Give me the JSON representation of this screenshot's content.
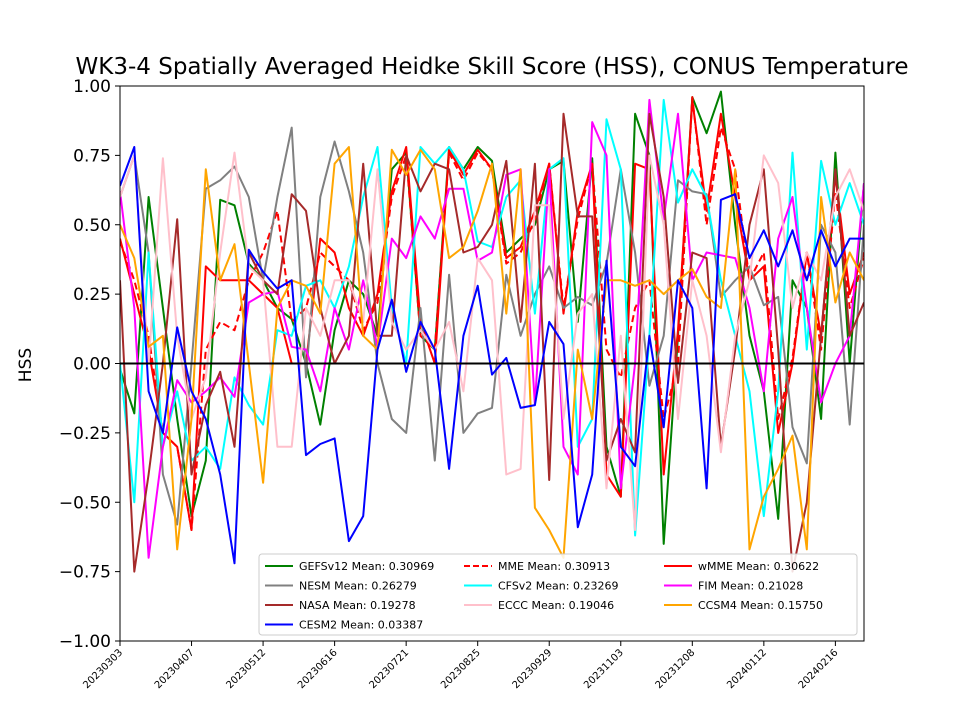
{
  "chart_data": {
    "type": "line",
    "title": "WK3-4 Spatially Averaged Heidke Skill Score (HSS), CONUS Temperature",
    "xlabel": "",
    "ylabel": "HSS",
    "ylim": [
      -1.0,
      1.0
    ],
    "y_ticks": [
      "1.00",
      "0.75",
      "0.50",
      "0.25",
      "0.00",
      "−0.25",
      "−0.50",
      "−0.75",
      "−1.00"
    ],
    "y_tick_values": [
      1.0,
      0.75,
      0.5,
      0.25,
      0.0,
      -0.25,
      -0.5,
      -0.75,
      -1.0
    ],
    "x_ticks": [
      "20230303",
      "20230407",
      "20230512",
      "20230616",
      "20230721",
      "20230825",
      "20230929",
      "20231103",
      "20231208",
      "20240112",
      "20240216"
    ],
    "zero_line": true,
    "grid": false,
    "legend_position": "lower-right",
    "x_count": 53,
    "series": [
      {
        "name": "GEFSv12 Mean: 0.30969",
        "color": "#008000",
        "dash": "solid",
        "values": [
          -0.02,
          -0.18,
          0.6,
          0.2,
          -0.2,
          -0.55,
          -0.35,
          0.59,
          0.57,
          0.36,
          0.3,
          0.2,
          0.16,
          0.0,
          -0.22,
          0.12,
          0.3,
          0.25,
          0.1,
          0.7,
          0.76,
          0.1,
          0.05,
          0.78,
          0.7,
          0.78,
          0.73,
          0.4,
          0.45,
          0.5,
          0.7,
          0.73,
          0.15,
          0.74,
          -0.3,
          -0.48,
          0.9,
          0.75,
          -0.65,
          0.1,
          0.96,
          0.83,
          0.98,
          0.5,
          0.1,
          -0.1,
          -0.56,
          0.3,
          0.2,
          -0.2,
          0.76,
          0.0,
          0.65
        ]
      },
      {
        "name": "MME Mean: 0.30913",
        "color": "#ff0000",
        "dash": "dashed",
        "values": [
          0.44,
          0.3,
          0.1,
          -0.25,
          -0.3,
          -0.6,
          0.05,
          0.15,
          0.12,
          0.3,
          0.4,
          0.55,
          0.15,
          0.2,
          0.4,
          0.35,
          0.3,
          0.12,
          0.22,
          0.6,
          0.75,
          0.1,
          0.05,
          0.76,
          0.66,
          0.76,
          0.7,
          0.36,
          0.4,
          0.52,
          0.72,
          0.2,
          0.52,
          0.72,
          0.05,
          -0.05,
          0.2,
          0.3,
          -0.2,
          0.0,
          0.96,
          0.5,
          0.85,
          0.7,
          0.3,
          0.4,
          -0.2,
          0.02,
          0.4,
          0.05,
          0.62,
          0.2,
          0.38
        ]
      },
      {
        "name": "wMME Mean: 0.30622",
        "color": "#ff0000",
        "dash": "solid",
        "values": [
          0.45,
          0.25,
          0.05,
          -0.25,
          -0.3,
          -0.6,
          0.35,
          0.3,
          0.3,
          0.3,
          0.25,
          0.2,
          0.0,
          0.0,
          0.45,
          0.4,
          0.2,
          0.1,
          0.25,
          0.62,
          0.78,
          0.15,
          0.0,
          0.77,
          0.68,
          0.77,
          0.7,
          0.38,
          0.42,
          0.55,
          0.72,
          0.18,
          0.55,
          0.72,
          -0.4,
          -0.48,
          0.72,
          0.7,
          -0.4,
          0.12,
          0.95,
          0.55,
          0.9,
          0.6,
          0.3,
          0.35,
          -0.25,
          0.0,
          0.4,
          0.1,
          0.68,
          0.25,
          0.4
        ]
      },
      {
        "name": "NESM Mean: 0.26279",
        "color": "#808080",
        "dash": "solid",
        "values": [
          0.6,
          0.75,
          0.4,
          -0.4,
          -0.58,
          0.0,
          0.63,
          0.66,
          0.71,
          0.6,
          0.3,
          0.6,
          0.85,
          -0.05,
          0.6,
          0.8,
          0.62,
          0.4,
          0.0,
          -0.2,
          -0.25,
          0.2,
          -0.35,
          0.32,
          -0.25,
          -0.18,
          -0.16,
          0.32,
          0.1,
          0.25,
          0.35,
          0.2,
          0.24,
          0.21,
          0.36,
          0.7,
          0.4,
          -0.08,
          0.1,
          0.66,
          0.62,
          0.61,
          0.24,
          0.3,
          0.35,
          0.21,
          0.24,
          -0.23,
          -0.36,
          0.5,
          0.4,
          -0.22,
          0.5
        ]
      },
      {
        "name": "CFSv2 Mean: 0.23269",
        "color": "#00ffff",
        "dash": "solid",
        "values": [
          0.0,
          -0.5,
          0.4,
          -0.3,
          -0.1,
          -0.35,
          -0.3,
          -0.38,
          -0.05,
          -0.15,
          -0.22,
          0.12,
          0.1,
          0.28,
          0.3,
          0.2,
          0.35,
          0.6,
          0.78,
          0.2,
          0.0,
          0.78,
          0.72,
          0.78,
          0.7,
          0.44,
          0.42,
          0.6,
          0.66,
          0.18,
          0.7,
          0.74,
          -0.3,
          -0.2,
          0.88,
          0.7,
          -0.62,
          0.1,
          0.95,
          0.58,
          0.7,
          0.6,
          0.3,
          0.1,
          -0.1,
          -0.55,
          -0.1,
          0.76,
          0.05,
          0.73,
          0.5,
          0.65,
          0.5
        ]
      },
      {
        "name": "FIM Mean: 0.21028",
        "color": "#ff00ff",
        "dash": "solid",
        "values": [
          0.62,
          0.2,
          -0.7,
          -0.3,
          -0.06,
          -0.14,
          -0.1,
          -0.05,
          -0.12,
          0.22,
          0.25,
          0.26,
          0.06,
          0.05,
          -0.1,
          0.2,
          0.05,
          0.3,
          0.06,
          0.45,
          0.38,
          0.53,
          0.45,
          0.63,
          0.63,
          0.37,
          0.4,
          0.68,
          0.7,
          -0.15,
          0.7,
          -0.3,
          -0.4,
          0.87,
          0.75,
          -0.45,
          0.0,
          0.95,
          0.52,
          0.9,
          0.3,
          0.4,
          0.39,
          0.38,
          0.2,
          -0.1,
          0.45,
          0.6,
          0.2,
          -0.14,
          0.0,
          0.1,
          0.65
        ]
      },
      {
        "name": "NASA Mean: 0.19278",
        "color": "#a52a2a",
        "dash": "solid",
        "values": [
          0.3,
          -0.75,
          -0.4,
          0.0,
          0.52,
          -0.4,
          -0.15,
          -0.03,
          -0.3,
          0.4,
          0.3,
          0.25,
          0.61,
          0.55,
          0.2,
          0.0,
          0.1,
          0.72,
          0.1,
          0.1,
          0.75,
          0.62,
          0.72,
          0.7,
          0.4,
          0.42,
          0.5,
          0.73,
          0.15,
          0.72,
          -0.42,
          0.9,
          0.53,
          0.53,
          -0.35,
          -0.2,
          -0.32,
          0.9,
          0.6,
          -0.07,
          0.4,
          0.38,
          -0.3,
          0.05,
          0.5,
          0.7,
          0.05,
          -0.75,
          -0.5,
          0.1,
          0.7,
          0.1,
          0.22
        ]
      },
      {
        "name": "ECCC Mean: 0.19046",
        "color": "#ffc0cb",
        "dash": "solid",
        "values": [
          0.6,
          0.75,
          0.0,
          0.74,
          0.1,
          -0.2,
          -0.05,
          0.4,
          0.76,
          0.35,
          0.3,
          -0.3,
          -0.3,
          0.2,
          0.1,
          0.3,
          0.3,
          0.15,
          0.7,
          0.15,
          0.05,
          0.12,
          0.05,
          0.15,
          -0.1,
          0.38,
          0.3,
          -0.4,
          -0.38,
          0.57,
          0.57,
          -0.2,
          0.18,
          0.25,
          -0.45,
          0.1,
          -0.6,
          0.75,
          0.5,
          -0.2,
          0.3,
          0.1,
          -0.32,
          0.1,
          0.3,
          0.75,
          0.65,
          0.2,
          0.4,
          0.3,
          0.6,
          0.7,
          0.55
        ]
      },
      {
        "name": "CCSM4 Mean: 0.15750",
        "color": "#ffa500",
        "dash": "solid",
        "values": [
          0.5,
          0.38,
          0.06,
          0.1,
          -0.67,
          -0.2,
          0.7,
          0.3,
          0.43,
          0.0,
          -0.43,
          0.2,
          0.3,
          0.28,
          0.18,
          0.72,
          0.78,
          0.1,
          0.05,
          0.77,
          0.68,
          0.77,
          0.7,
          0.38,
          0.42,
          0.55,
          0.72,
          0.18,
          0.7,
          -0.52,
          -0.6,
          -0.7,
          0.05,
          -0.2,
          0.3,
          0.3,
          0.28,
          0.3,
          0.25,
          0.3,
          0.34,
          0.24,
          0.2,
          0.7,
          -0.67,
          -0.48,
          -0.38,
          -0.26,
          -0.67,
          0.6,
          0.22,
          0.4,
          0.3
        ]
      },
      {
        "name": "CESM2 Mean: 0.03387",
        "color": "#0000ff",
        "dash": "solid",
        "values": [
          0.64,
          0.78,
          -0.1,
          -0.25,
          0.13,
          -0.1,
          -0.2,
          -0.4,
          -0.72,
          0.41,
          0.33,
          0.27,
          0.3,
          -0.33,
          -0.29,
          -0.27,
          -0.64,
          -0.55,
          0.05,
          0.23,
          -0.03,
          0.15,
          0.05,
          -0.38,
          0.1,
          0.28,
          -0.04,
          0.02,
          -0.16,
          -0.15,
          0.15,
          0.07,
          -0.59,
          -0.4,
          0.37,
          -0.3,
          -0.37,
          0.1,
          -0.23,
          0.3,
          0.2,
          -0.45,
          0.59,
          0.61,
          0.38,
          0.48,
          0.35,
          0.48,
          0.3,
          0.48,
          0.35,
          0.45,
          0.45
        ]
      }
    ]
  }
}
